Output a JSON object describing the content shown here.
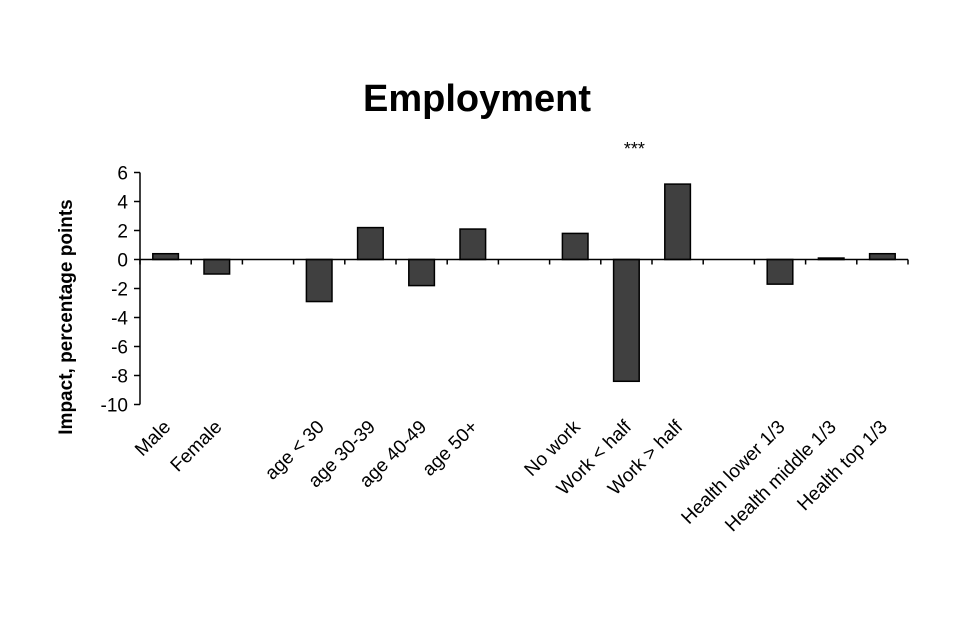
{
  "chart_data": {
    "type": "bar",
    "title": "Employment",
    "xlabel": "",
    "ylabel": "Impact, percentage points",
    "ylim": [
      -10,
      6
    ],
    "yticks": [
      6,
      4,
      2,
      0,
      -2,
      -4,
      -6,
      -8,
      -10
    ],
    "grid": false,
    "legend": "none",
    "bar_color": "#404040",
    "categories": [
      "Male",
      "Female",
      "",
      "age < 30",
      "age 30-39",
      "age 40-49",
      "age 50+",
      "",
      "No work",
      "Work < half",
      "Work > half",
      "",
      "Health lower 1/3",
      "Health middle 1/3",
      "Health top 1/3"
    ],
    "values": [
      0.4,
      -1.0,
      null,
      -2.9,
      2.2,
      -1.8,
      2.1,
      null,
      1.8,
      -8.4,
      5.2,
      null,
      -1.7,
      0.1,
      0.4
    ],
    "annotations": [
      {
        "category": "Work < half",
        "text": "***"
      }
    ]
  }
}
